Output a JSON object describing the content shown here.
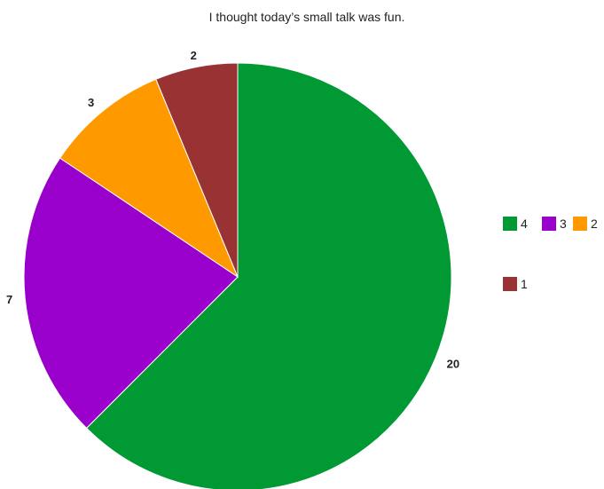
{
  "chart_data": {
    "type": "pie",
    "title": "I thought today’s small talk was fun.",
    "categories": [
      "4",
      "3",
      "2",
      "1"
    ],
    "values": [
      20,
      7,
      3,
      2
    ],
    "data_labels": [
      "20",
      "7",
      "3",
      "2"
    ],
    "colors": [
      "#009933",
      "#9900cc",
      "#ff9900",
      "#993333"
    ],
    "start_angle": "12 o'clock",
    "direction": "clockwise",
    "legend_position": "right"
  }
}
